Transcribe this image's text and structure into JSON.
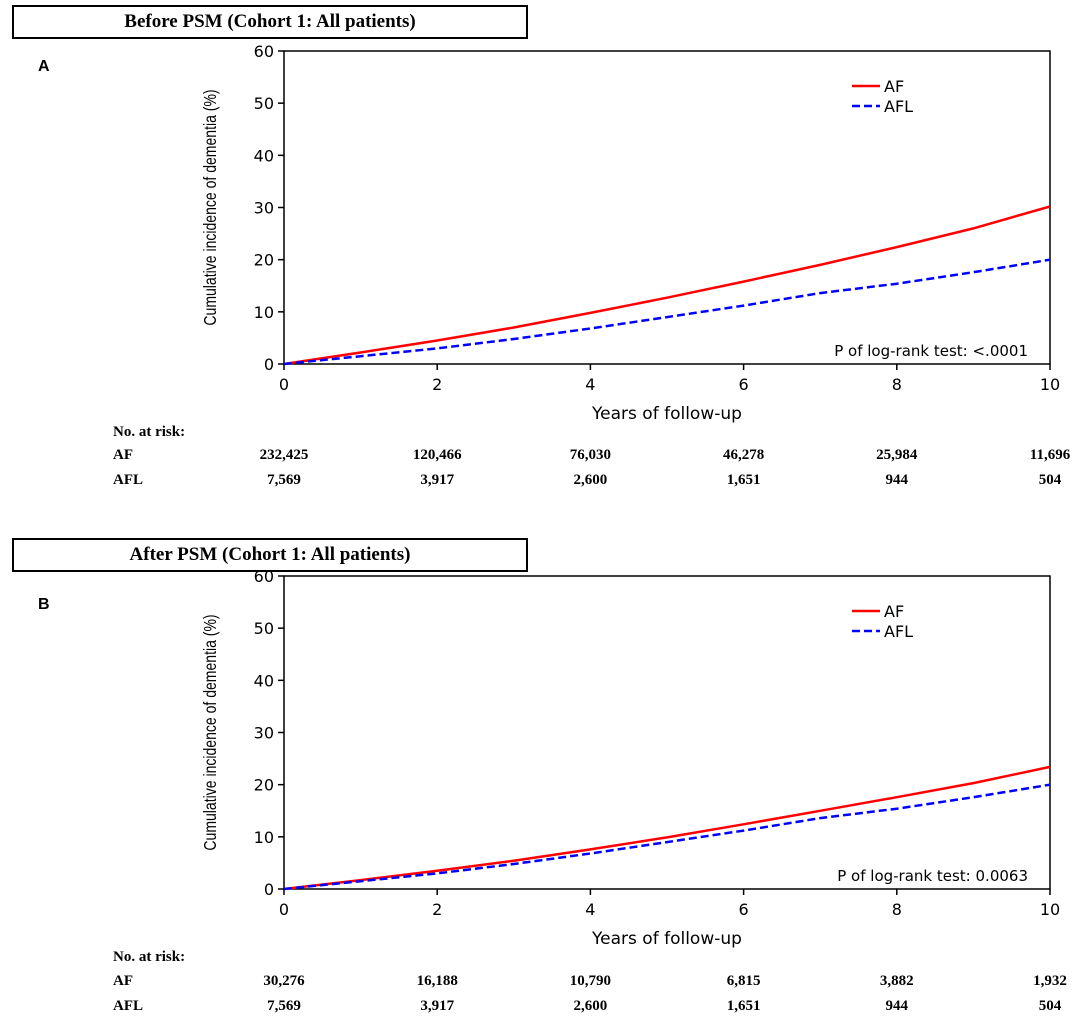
{
  "chart_data": [
    {
      "type": "line",
      "panel_label": "A",
      "title": "Before PSM (Cohort 1: All patients)",
      "xlabel": "Years of follow-up",
      "ylabel": "Cumulative incidence of dementia (%)",
      "xlim": [
        0,
        10
      ],
      "ylim": [
        0,
        60
      ],
      "xticks": [
        0,
        2,
        4,
        6,
        8,
        10
      ],
      "yticks": [
        0,
        10,
        20,
        30,
        40,
        50,
        60
      ],
      "legend_position": "top-right",
      "annotation": "P of log-rank test: <.0001",
      "series": [
        {
          "name": "AF",
          "color": "#ff0000",
          "style": "solid",
          "x": [
            0,
            1,
            2,
            3,
            4,
            5,
            6,
            7,
            8,
            9,
            10
          ],
          "y": [
            0,
            2.2,
            4.5,
            7.0,
            9.8,
            12.7,
            15.8,
            19.0,
            22.4,
            26.0,
            30.2
          ]
        },
        {
          "name": "AFL",
          "color": "#0000ff",
          "style": "dashed",
          "x": [
            0,
            1,
            2,
            3,
            4,
            5,
            6,
            7,
            8,
            9,
            10
          ],
          "y": [
            0,
            1.5,
            3.0,
            4.8,
            6.8,
            9.0,
            11.2,
            13.6,
            15.4,
            17.6,
            20.0
          ]
        }
      ],
      "risk_table": {
        "header": "No. at risk:",
        "rows": [
          {
            "label": "AF",
            "values": [
              "232,425",
              "120,466",
              "76,030",
              "46,278",
              "25,984",
              "11,696"
            ]
          },
          {
            "label": "AFL",
            "values": [
              "7,569",
              "3,917",
              "2,600",
              "1,651",
              "944",
              "504"
            ]
          }
        ]
      }
    },
    {
      "type": "line",
      "panel_label": "B",
      "title": "After PSM (Cohort 1: All patients)",
      "xlabel": "Years of follow-up",
      "ylabel": "Cumulative incidence of dementia (%)",
      "xlim": [
        0,
        10
      ],
      "ylim": [
        0,
        60
      ],
      "xticks": [
        0,
        2,
        4,
        6,
        8,
        10
      ],
      "yticks": [
        0,
        10,
        20,
        30,
        40,
        50,
        60
      ],
      "legend_position": "top-right",
      "annotation": "P of log-rank test: 0.0063",
      "series": [
        {
          "name": "AF",
          "color": "#ff0000",
          "style": "solid",
          "x": [
            0,
            1,
            2,
            3,
            4,
            5,
            6,
            7,
            8,
            9,
            10
          ],
          "y": [
            0,
            1.7,
            3.5,
            5.4,
            7.6,
            9.9,
            12.4,
            15.0,
            17.6,
            20.3,
            23.4
          ]
        },
        {
          "name": "AFL",
          "color": "#0000ff",
          "style": "dashed",
          "x": [
            0,
            1,
            2,
            3,
            4,
            5,
            6,
            7,
            8,
            9,
            10
          ],
          "y": [
            0,
            1.5,
            3.0,
            4.8,
            6.8,
            9.0,
            11.2,
            13.6,
            15.4,
            17.6,
            20.0
          ]
        }
      ],
      "risk_table": {
        "header": "No. at risk:",
        "rows": [
          {
            "label": "AF",
            "values": [
              "30,276",
              "16,188",
              "10,790",
              "6,815",
              "3,882",
              "1,932"
            ]
          },
          {
            "label": "AFL",
            "values": [
              "7,569",
              "3,917",
              "2,600",
              "1,651",
              "944",
              "504"
            ]
          }
        ]
      }
    }
  ]
}
